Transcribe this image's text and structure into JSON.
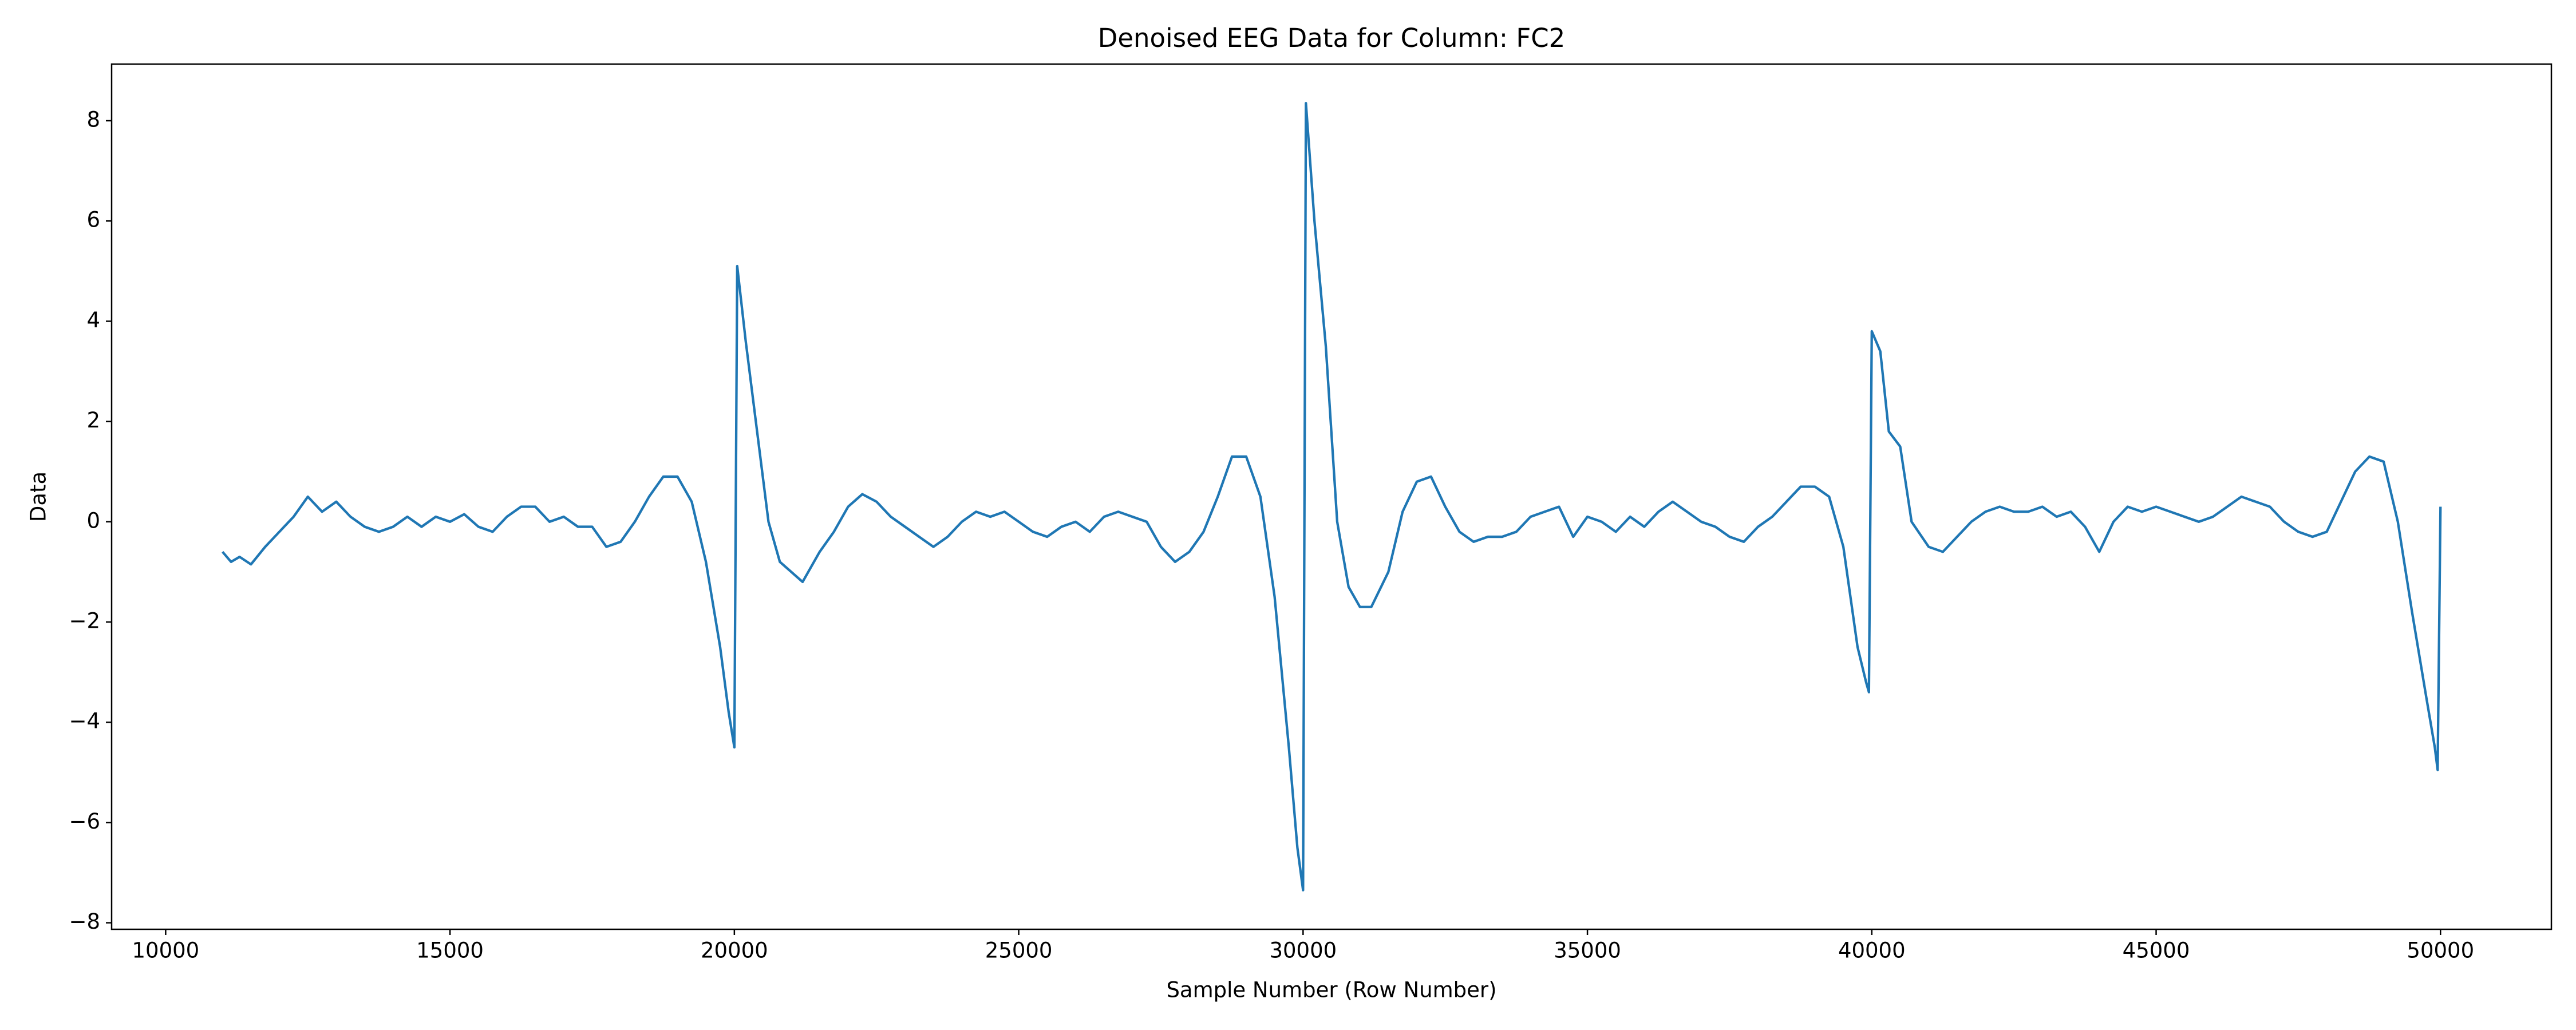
{
  "chart_data": {
    "type": "line",
    "title": "Denoised EEG Data for Column: FC2",
    "x_label": "Sample Number (Row Number)",
    "y_label": "Data",
    "color": "#1f77b4",
    "x": [
      11000,
      11150,
      11300,
      11500,
      11750,
      12000,
      12250,
      12500,
      12750,
      13000,
      13250,
      13500,
      13750,
      14000,
      14250,
      14500,
      14750,
      15000,
      15250,
      15500,
      15750,
      16000,
      16250,
      16500,
      16750,
      17000,
      17250,
      17500,
      17750,
      18000,
      18250,
      18500,
      18750,
      19000,
      19250,
      19500,
      19750,
      19900,
      20000,
      20050,
      20200,
      20400,
      20600,
      20800,
      21000,
      21200,
      21500,
      21750,
      22000,
      22250,
      22500,
      22750,
      23000,
      23250,
      23500,
      23750,
      24000,
      24250,
      24500,
      24750,
      25000,
      25250,
      25500,
      25750,
      26000,
      26250,
      26500,
      26750,
      27000,
      27250,
      27500,
      27750,
      28000,
      28250,
      28500,
      28750,
      29000,
      29250,
      29500,
      29750,
      29900,
      30000,
      30050,
      30200,
      30400,
      30600,
      30800,
      31000,
      31200,
      31500,
      31750,
      32000,
      32250,
      32500,
      32750,
      33000,
      33250,
      33500,
      33750,
      34000,
      34250,
      34500,
      34750,
      35000,
      35250,
      35500,
      35750,
      36000,
      36250,
      36500,
      36750,
      37000,
      37250,
      37500,
      37750,
      38000,
      38250,
      38500,
      38750,
      39000,
      39250,
      39500,
      39750,
      39900,
      39950,
      40000,
      40150,
      40300,
      40500,
      40700,
      41000,
      41250,
      41500,
      41750,
      42000,
      42250,
      42500,
      42750,
      43000,
      43250,
      43500,
      43750,
      44000,
      44250,
      44500,
      44750,
      45000,
      45250,
      45500,
      45750,
      46000,
      46250,
      46500,
      46750,
      47000,
      47250,
      47500,
      47750,
      48000,
      48250,
      48500,
      48750,
      49000,
      49250,
      49500,
      49750,
      49900,
      49950,
      50000
    ],
    "values": [
      -0.6,
      -0.8,
      -0.7,
      -0.85,
      -0.5,
      -0.2,
      0.1,
      0.5,
      0.2,
      0.4,
      0.1,
      -0.1,
      -0.2,
      -0.1,
      0.1,
      -0.1,
      0.1,
      0.0,
      0.15,
      -0.1,
      -0.2,
      0.1,
      0.3,
      0.3,
      0.0,
      0.1,
      -0.1,
      -0.1,
      -0.5,
      -0.4,
      0.0,
      0.5,
      0.9,
      0.9,
      0.4,
      -0.8,
      -2.5,
      -3.8,
      -4.5,
      5.1,
      3.6,
      1.8,
      0.0,
      -0.8,
      -1.0,
      -1.2,
      -0.6,
      -0.2,
      0.3,
      0.55,
      0.4,
      0.1,
      -0.1,
      -0.3,
      -0.5,
      -0.3,
      0.0,
      0.2,
      0.1,
      0.2,
      0.0,
      -0.2,
      -0.3,
      -0.1,
      0.0,
      -0.2,
      0.1,
      0.2,
      0.1,
      0.0,
      -0.5,
      -0.8,
      -0.6,
      -0.2,
      0.5,
      1.3,
      1.3,
      0.5,
      -1.5,
      -4.5,
      -6.5,
      -7.35,
      8.35,
      6.0,
      3.5,
      0.0,
      -1.3,
      -1.7,
      -1.7,
      -1.0,
      0.2,
      0.8,
      0.9,
      0.3,
      -0.2,
      -0.4,
      -0.3,
      -0.3,
      -0.2,
      0.1,
      0.2,
      0.3,
      -0.3,
      0.1,
      0.0,
      -0.2,
      0.1,
      -0.1,
      0.2,
      0.4,
      0.2,
      0.0,
      -0.1,
      -0.3,
      -0.4,
      -0.1,
      0.1,
      0.4,
      0.7,
      0.7,
      0.5,
      -0.5,
      -2.5,
      -3.2,
      -3.4,
      3.8,
      3.4,
      1.8,
      1.5,
      0.0,
      -0.5,
      -0.6,
      -0.3,
      0.0,
      0.2,
      0.3,
      0.2,
      0.2,
      0.3,
      0.1,
      0.2,
      -0.1,
      -0.6,
      0.0,
      0.3,
      0.2,
      0.3,
      0.2,
      0.1,
      0.0,
      0.1,
      0.3,
      0.5,
      0.4,
      0.3,
      0.0,
      -0.2,
      -0.3,
      -0.2,
      0.4,
      1.0,
      1.3,
      1.2,
      0.0,
      -1.8,
      -3.5,
      -4.5,
      -4.95,
      0.3
    ],
    "xlim": [
      9050,
      51950
    ],
    "ylim": [
      -8.13,
      9.13
    ],
    "xticks": [
      10000,
      15000,
      20000,
      25000,
      30000,
      35000,
      40000,
      45000,
      50000
    ],
    "yticks": [
      {
        "value": -8,
        "label": "−8"
      },
      {
        "value": -6,
        "label": "−6"
      },
      {
        "value": -4,
        "label": "−4"
      },
      {
        "value": -2,
        "label": "−2"
      },
      0,
      2,
      4,
      6,
      8
    ],
    "grid": false
  }
}
